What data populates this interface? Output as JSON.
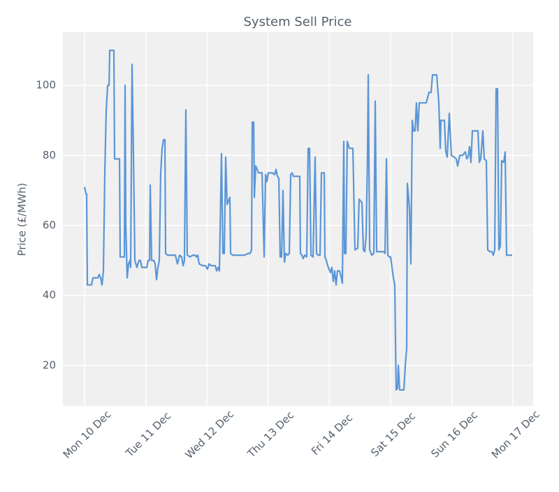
{
  "chart_data": {
    "type": "line",
    "title": "System Sell Price",
    "ylabel": "Price (£/MWh)",
    "xlim": [
      -0.354,
      7.329
    ],
    "ylim": [
      8.4,
      115.2
    ],
    "xticks": [
      {
        "value": 0,
        "label": "Mon 10 Dec"
      },
      {
        "value": 1,
        "label": "Tue 11 Dec"
      },
      {
        "value": 2,
        "label": "Wed 12 Dec"
      },
      {
        "value": 3,
        "label": "Thu 13 Dec"
      },
      {
        "value": 4,
        "label": "Fri 14 Dec"
      },
      {
        "value": 5,
        "label": "Sat 15 Dec"
      },
      {
        "value": 6,
        "label": "Sun 16 Dec"
      },
      {
        "value": 7,
        "label": "Mon 17 Dec"
      }
    ],
    "yticks": [
      20,
      40,
      60,
      80,
      100
    ],
    "grid": true,
    "x": [
      0,
      0.023,
      0.034,
      0.046,
      0.08,
      0.114,
      0.137,
      0.217,
      0.24,
      0.263,
      0.285,
      0.308,
      0.331,
      0.354,
      0.377,
      0.4,
      0.411,
      0.479,
      0.491,
      0.514,
      0.537,
      0.571,
      0.582,
      0.628,
      0.651,
      0.662,
      0.674,
      0.696,
      0.719,
      0.742,
      0.753,
      0.776,
      0.799,
      0.822,
      0.856,
      0.89,
      0.913,
      0.936,
      0.97,
      1.016,
      1.039,
      1.062,
      1.073,
      1.096,
      1.13,
      1.153,
      1.176,
      1.199,
      1.221,
      1.244,
      1.267,
      1.29,
      1.313,
      1.324,
      1.358,
      1.45,
      1.484,
      1.518,
      1.553,
      1.587,
      1.61,
      1.632,
      1.655,
      1.678,
      1.724,
      1.769,
      1.804,
      1.826,
      1.849,
      1.872,
      1.929,
      1.975,
      2.009,
      2.032,
      2.066,
      2.135,
      2.158,
      2.18,
      2.203,
      2.237,
      2.26,
      2.283,
      2.306,
      2.329,
      2.352,
      2.374,
      2.386,
      2.42,
      2.5,
      2.614,
      2.671,
      2.705,
      2.728,
      2.74,
      2.763,
      2.774,
      2.797,
      2.82,
      2.842,
      2.9,
      2.934,
      2.957,
      2.979,
      3.002,
      3.071,
      3.105,
      3.128,
      3.151,
      3.174,
      3.196,
      3.219,
      3.242,
      3.265,
      3.288,
      3.322,
      3.345,
      3.368,
      3.39,
      3.413,
      3.459,
      3.516,
      3.527,
      3.55,
      3.573,
      3.596,
      3.63,
      3.653,
      3.676,
      3.699,
      3.733,
      3.767,
      3.79,
      3.813,
      3.847,
      3.87,
      3.916,
      3.927,
      3.95,
      3.973,
      3.995,
      4.018,
      4.041,
      4.064,
      4.087,
      4.11,
      4.132,
      4.167,
      4.189,
      4.212,
      4.235,
      4.247,
      4.269,
      4.292,
      4.326,
      4.384,
      4.418,
      4.463,
      4.486,
      4.509,
      4.532,
      4.555,
      4.578,
      4.6,
      4.623,
      4.635,
      4.658,
      4.692,
      4.726,
      4.749,
      4.772,
      4.806,
      4.84,
      4.886,
      4.909,
      4.932,
      4.954,
      4.977,
      5.0,
      5.023,
      5.046,
      5.068,
      5.091,
      5.114,
      5.126,
      5.148,
      5.183,
      5.217,
      5.24,
      5.263,
      5.274,
      5.308,
      5.331,
      5.354,
      5.377,
      5.4,
      5.422,
      5.445,
      5.468,
      5.525,
      5.582,
      5.628,
      5.662,
      5.685,
      5.719,
      5.753,
      5.788,
      5.811,
      5.822,
      5.879,
      5.902,
      5.925,
      5.959,
      5.993,
      6.039,
      6.073,
      6.096,
      6.13,
      6.176,
      6.221,
      6.244,
      6.267,
      6.29,
      6.313,
      6.336,
      6.393,
      6.427,
      6.45,
      6.473,
      6.507,
      6.53,
      6.564,
      6.587,
      6.621,
      6.655,
      6.678,
      6.701,
      6.724,
      6.747,
      6.769,
      6.792,
      6.815,
      6.849,
      6.872,
      6.895,
      6.929,
      6.986
    ],
    "series": [
      {
        "name": "System Sell Price",
        "color": "#5b96d6",
        "values": [
          71,
          69,
          69,
          43,
          43,
          43,
          45,
          45,
          46,
          45,
          43,
          47,
          75,
          93,
          100,
          100,
          110,
          110,
          79,
          79,
          79,
          79,
          51,
          51,
          51,
          100,
          60,
          45,
          49,
          50,
          48,
          106,
          80,
          50,
          48,
          50,
          50,
          48,
          48,
          48,
          50,
          50,
          71.5,
          50,
          50,
          49,
          44.5,
          48,
          50,
          75,
          82,
          84.5,
          84.5,
          52,
          51.5,
          51.5,
          51.5,
          49,
          51.5,
          51,
          48.5,
          50,
          93,
          51.5,
          51,
          51.5,
          51.5,
          51,
          51.5,
          49,
          48.5,
          48.5,
          47.5,
          49,
          48.5,
          48.5,
          47,
          48,
          47,
          80.5,
          52,
          52,
          79.5,
          66,
          67,
          68,
          52,
          51.5,
          51.5,
          51.5,
          52,
          52,
          53,
          89.5,
          89.5,
          68,
          77,
          76,
          75,
          75,
          51,
          74.5,
          72.5,
          75,
          75,
          74.5,
          76,
          74,
          73.5,
          51,
          51,
          70,
          49.5,
          52,
          51.5,
          52,
          74.5,
          75,
          74,
          74,
          74,
          52,
          51.5,
          50.5,
          51.5,
          51,
          82,
          82,
          51.5,
          51,
          79.5,
          52,
          51.5,
          51.5,
          75,
          75,
          51,
          50,
          48.5,
          47.5,
          46.5,
          48,
          44,
          47,
          43,
          47,
          47,
          45.5,
          43.5,
          84,
          52,
          52,
          84,
          82,
          82,
          53,
          53.5,
          67.5,
          67,
          66.5,
          53,
          52.5,
          57,
          80,
          103,
          53,
          51.5,
          52,
          95.5,
          52.5,
          52.5,
          52.5,
          52.5,
          52,
          79,
          51.5,
          51,
          51,
          48,
          45,
          43,
          13,
          13.5,
          20,
          13,
          13,
          13,
          20,
          25,
          72,
          65,
          49,
          90,
          87,
          87,
          95,
          87,
          95,
          95,
          95,
          98,
          98,
          103,
          103,
          103,
          95,
          82,
          90,
          90,
          81,
          79.5,
          92,
          80,
          79.5,
          79,
          77,
          80,
          80,
          81,
          79,
          79.5,
          82.5,
          78,
          87,
          87,
          87,
          78,
          79,
          87,
          79,
          78.5,
          53,
          52.5,
          52.5,
          51.5,
          53,
          99,
          99,
          53,
          54,
          78.5,
          78,
          81,
          51.5,
          51.5,
          51.5
        ]
      }
    ]
  }
}
